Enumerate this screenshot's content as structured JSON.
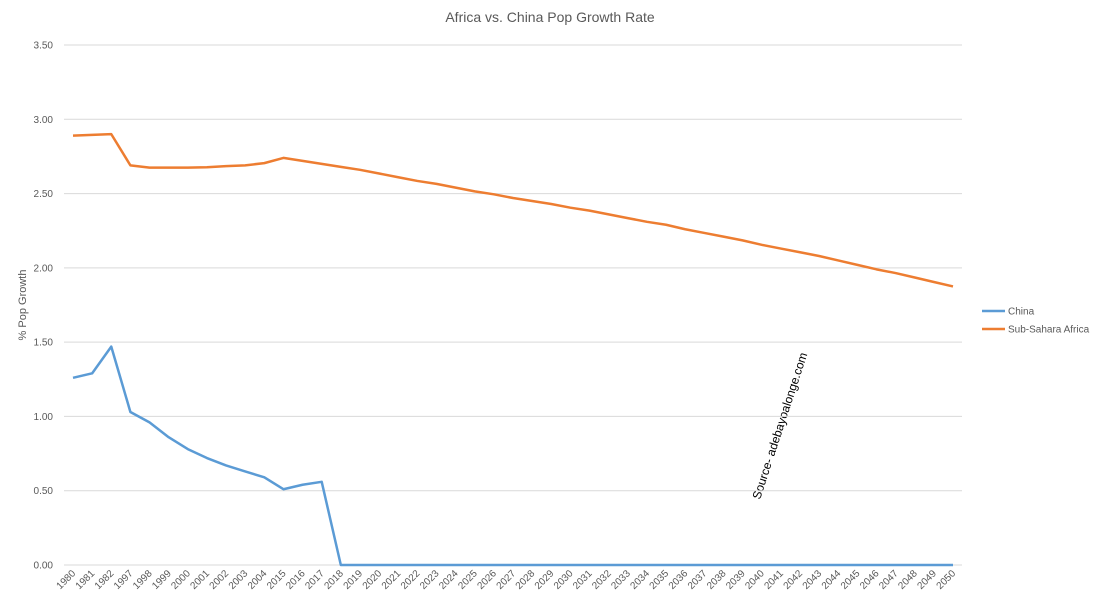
{
  "chart_data": {
    "type": "line",
    "title": "Africa vs. China Pop Growth Rate",
    "y_label": "% Pop Growth",
    "annotation": "Source- adebayoalonge.com",
    "categories": [
      "1980",
      "1981",
      "1982",
      "1997",
      "1998",
      "1999",
      "2000",
      "2001",
      "2002",
      "2003",
      "2004",
      "2015",
      "2016",
      "2017",
      "2018",
      "2019",
      "2020",
      "2021",
      "2022",
      "2023",
      "2024",
      "2025",
      "2026",
      "2027",
      "2028",
      "2029",
      "2030",
      "2031",
      "2032",
      "2033",
      "2034",
      "2035",
      "2036",
      "2037",
      "2038",
      "2039",
      "2040",
      "2041",
      "2042",
      "2043",
      "2044",
      "2045",
      "2046",
      "2047",
      "2048",
      "2049",
      "2050"
    ],
    "series": [
      {
        "name": "China",
        "color": "#5b9bd5",
        "values": [
          1.26,
          1.29,
          1.47,
          1.03,
          0.96,
          0.86,
          0.78,
          0.72,
          0.67,
          0.63,
          0.59,
          0.51,
          0.54,
          0.56,
          0,
          0,
          0,
          0,
          0,
          0,
          0,
          0,
          0,
          0,
          0,
          0,
          0,
          0,
          0,
          0,
          0,
          0,
          0,
          0,
          0,
          0,
          0,
          0,
          0,
          0,
          0,
          0,
          0,
          0,
          0,
          0,
          0
        ]
      },
      {
        "name": "Sub-Sahara Africa",
        "color": "#ed7d31",
        "values": [
          2.89,
          2.895,
          2.9,
          2.69,
          2.675,
          2.675,
          2.675,
          2.677,
          2.685,
          2.69,
          2.705,
          2.74,
          2.72,
          2.7,
          2.68,
          2.66,
          2.635,
          2.61,
          2.585,
          2.565,
          2.54,
          2.515,
          2.495,
          2.47,
          2.45,
          2.43,
          2.405,
          2.385,
          2.36,
          2.335,
          2.31,
          2.29,
          2.26,
          2.235,
          2.21,
          2.185,
          2.155,
          2.13,
          2.105,
          2.08,
          2.05,
          2.02,
          1.99,
          1.965,
          1.935,
          1.905,
          1.875
        ]
      }
    ],
    "ylim": [
      0,
      3.5
    ],
    "yticks": [
      {
        "value": 0,
        "label": "0.00"
      },
      {
        "value": 0.5,
        "label": "0.50"
      },
      {
        "value": 1,
        "label": "1.00"
      },
      {
        "value": 1.5,
        "label": "1.50"
      },
      {
        "value": 2,
        "label": "2.00"
      },
      {
        "value": 2.5,
        "label": "2.50"
      },
      {
        "value": 3,
        "label": "3.00"
      },
      {
        "value": 3.5,
        "label": "3.50"
      }
    ],
    "grid": true,
    "legend": "right"
  }
}
